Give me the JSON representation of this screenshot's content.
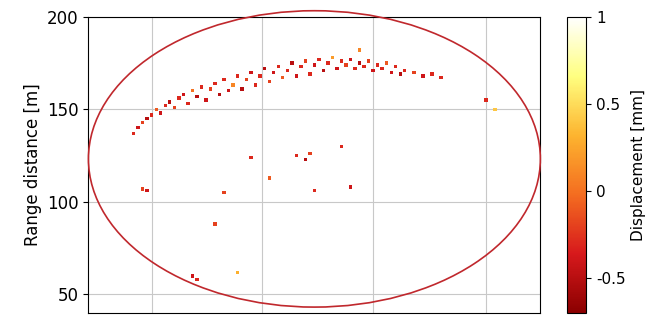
{
  "chart_data": {
    "type": "scatter",
    "y_label": "Range distance [m]",
    "x": [
      10,
      11,
      12,
      13,
      14,
      15,
      16,
      17,
      18,
      19,
      20,
      21,
      22,
      23,
      24,
      25,
      26,
      27,
      28,
      29,
      30,
      31,
      32,
      33,
      34,
      35,
      36,
      37,
      38,
      39,
      40,
      41,
      42,
      43,
      44,
      45,
      46,
      47,
      48,
      49,
      50,
      51,
      52,
      53,
      54,
      55,
      56,
      57,
      58,
      59,
      60,
      61,
      62,
      63,
      64,
      65,
      66,
      67,
      68,
      69,
      70,
      72,
      74,
      76,
      78,
      60,
      12,
      13,
      46,
      48,
      49,
      56,
      58,
      50,
      30,
      40,
      36,
      23,
      24,
      33,
      28,
      88,
      90
    ],
    "y": [
      137,
      140,
      143,
      145,
      147,
      150,
      148,
      152,
      154,
      151,
      156,
      158,
      153,
      160,
      157,
      162,
      155,
      161,
      164,
      158,
      166,
      160,
      163,
      168,
      161,
      166,
      170,
      163,
      168,
      172,
      165,
      170,
      173,
      167,
      171,
      175,
      168,
      173,
      176,
      169,
      174,
      177,
      171,
      175,
      178,
      172,
      176,
      174,
      177,
      172,
      175,
      173,
      176,
      171,
      174,
      172,
      175,
      170,
      173,
      169,
      171,
      170,
      168,
      169,
      167,
      182,
      107,
      106,
      125,
      123,
      126,
      130,
      108,
      106,
      105,
      113,
      124,
      60,
      58,
      62,
      88,
      155,
      150
    ],
    "displacement": [
      -0.3,
      -0.4,
      -0.2,
      -0.5,
      -0.3,
      -0.1,
      -0.4,
      -0.3,
      -0.5,
      -0.2,
      -0.3,
      -0.4,
      -0.3,
      0.0,
      -0.5,
      -0.3,
      -0.4,
      -0.2,
      -0.3,
      -0.5,
      -0.3,
      -0.4,
      0.1,
      -0.3,
      -0.5,
      -0.2,
      -0.4,
      -0.3,
      -0.3,
      -0.5,
      -0.2,
      -0.4,
      -0.3,
      -0.1,
      -0.3,
      -0.5,
      -0.4,
      -0.3,
      -0.2,
      -0.3,
      -0.4,
      -0.3,
      -0.5,
      -0.3,
      0.2,
      -0.4,
      -0.3,
      -0.2,
      -0.4,
      -0.3,
      -0.5,
      -0.3,
      -0.2,
      -0.4,
      -0.3,
      -0.3,
      -0.1,
      -0.4,
      -0.3,
      -0.5,
      -0.3,
      -0.2,
      -0.4,
      -0.3,
      -0.3,
      0.1,
      -0.2,
      -0.4,
      -0.3,
      -0.5,
      -0.2,
      -0.3,
      -0.4,
      -0.3,
      -0.2,
      -0.1,
      -0.3,
      -0.4,
      -0.3,
      0.3,
      -0.2,
      -0.3,
      0.4
    ],
    "xlim": [
      0,
      100
    ],
    "xticks": [
      14,
      38.5,
      63,
      88
    ],
    "ylim": [
      40,
      200
    ],
    "yticks": [
      50,
      100,
      150,
      200
    ],
    "grid": true,
    "tick_labels": "y",
    "marker": "s",
    "colorbar_label": "Displacement [mm]",
    "colorbar_range": [
      -0.7,
      1
    ],
    "colorbar_ticks": [
      -0.5,
      0,
      0.5,
      1
    ]
  }
}
